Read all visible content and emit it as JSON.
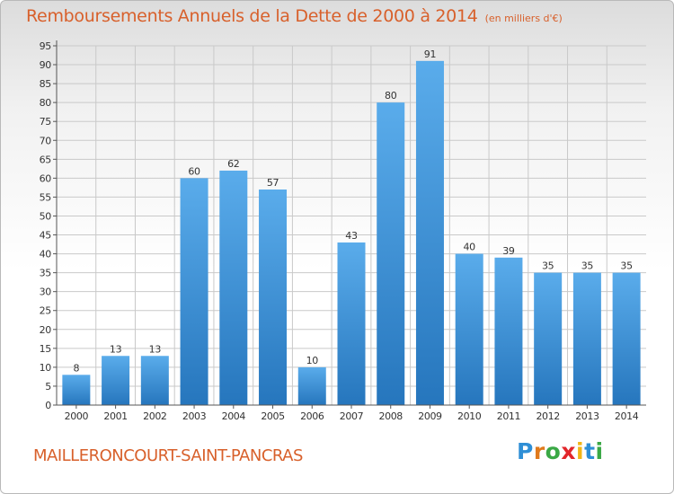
{
  "header": {
    "title": "Remboursements Annuels de la Dette de 2000 à 2014",
    "subtitle": "(en milliers d'€)"
  },
  "footer": {
    "place": "MAILLERONCOURT-SAINT-PANCRAS",
    "logo_letters": [
      "P",
      "r",
      "o",
      "x",
      "i",
      "t",
      "i"
    ],
    "logo_colors": [
      "#2f8fd6",
      "#e07a1c",
      "#3aa845",
      "#e2262b",
      "#f2b516",
      "#2f8fd6",
      "#3aa845"
    ]
  },
  "colors": {
    "bar_top": "#5aaceb",
    "bar_bottom": "#2676bd",
    "text": "#333333",
    "accent": "#d8602b",
    "grid": "#c9c9c9"
  },
  "chart_data": {
    "type": "bar",
    "categories": [
      "2000",
      "2001",
      "2002",
      "2003",
      "2004",
      "2005",
      "2006",
      "2007",
      "2008",
      "2009",
      "2010",
      "2011",
      "2012",
      "2013",
      "2014"
    ],
    "values": [
      8,
      13,
      13,
      60,
      62,
      57,
      10,
      43,
      80,
      91,
      40,
      39,
      35,
      35,
      35
    ],
    "data_labels": [
      "8",
      "13",
      "13",
      "60",
      "62",
      "57",
      "10",
      "43",
      "80",
      "91",
      "40",
      "39",
      "35",
      "35",
      "35"
    ],
    "yticks": [
      "0",
      "5",
      "10",
      "15",
      "20",
      "25",
      "30",
      "35",
      "40",
      "45",
      "50",
      "55",
      "60",
      "65",
      "70",
      "75",
      "80",
      "85",
      "90",
      "95"
    ],
    "ylim": [
      0,
      95
    ],
    "grid": true,
    "xlabel": "",
    "ylabel": ""
  }
}
